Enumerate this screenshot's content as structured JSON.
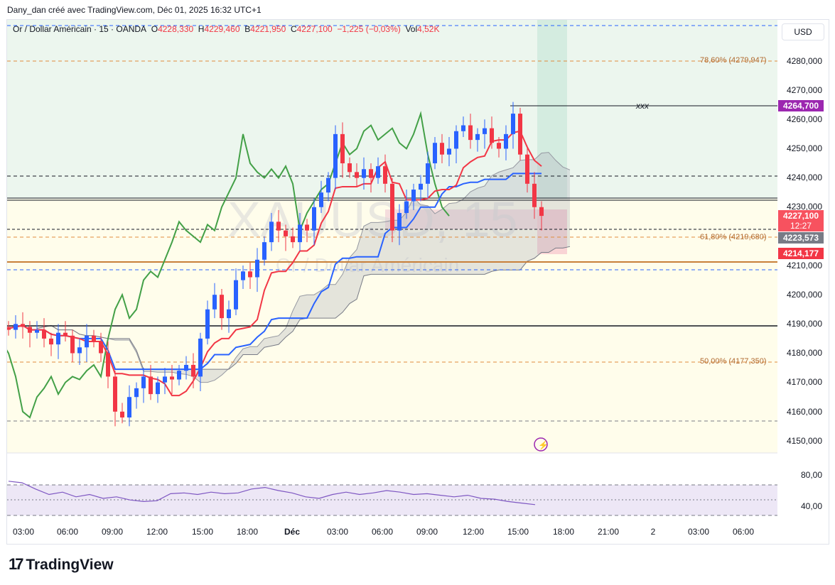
{
  "credit": "Dany_dan créé avec TradingView.com, Déc 01, 2025 16:32 UTC+1",
  "legend": {
    "symbol": "Or / Dollar Américain · 15 · OANDA",
    "o_label": "O",
    "o": "4228,330",
    "h_label": "H",
    "h": "4229,460",
    "b_label": "B",
    "b": "4221,950",
    "c_label": "C",
    "c": "4227,100",
    "change": "−1,225 (−0,03%)",
    "vol_label": "Vol",
    "vol": "4,52K"
  },
  "currency": "USD",
  "watermark": {
    "ticker": "XAUUSD, 15",
    "name": "Or / Dollar Américain"
  },
  "price_axis": [
    "4280,000",
    "4270,000",
    "4260,000",
    "4250,000",
    "4240,000",
    "4230,000",
    "4210,000",
    "4200,000",
    "4190,000",
    "4180,000",
    "4170,000",
    "4160,000",
    "4150,000"
  ],
  "price_tags": {
    "xxx": "4264,700",
    "last": "4227,100",
    "countdown": "12:27",
    "mid": "4223,573",
    "low": "4214,177"
  },
  "fib": {
    "f786": "78,60% (4279,947)",
    "f618": "61,80% (4219,680)",
    "f50": "50,00% (4177,350)"
  },
  "annotation": "xxx",
  "rsi_axis": [
    "80,00",
    "40,00"
  ],
  "time_axis": [
    "03:00",
    "06:00",
    "09:00",
    "12:00",
    "15:00",
    "18:00",
    "Déc",
    "03:00",
    "06:00",
    "09:00",
    "12:00",
    "15:00",
    "18:00",
    "21:00",
    "2",
    "03:00",
    "06:00"
  ],
  "logo": "TradingView",
  "colors": {
    "up": "#2962ff",
    "down": "#f23645",
    "tenkan": "#f23645",
    "kijun": "#2962ff",
    "chikou": "#43a047",
    "rsi": "#7e57c2"
  },
  "chart_data": {
    "type": "candlestick",
    "symbol": "XAUUSD",
    "interval": "15",
    "ylim": [
      4145,
      4295
    ],
    "closes": [
      4188,
      4190,
      4189,
      4187,
      4188,
      4185,
      4183,
      4187,
      4186,
      4180,
      4182,
      4186,
      4184,
      4180,
      4172,
      4160,
      4158,
      4165,
      4168,
      4172,
      4166,
      4170,
      4172,
      4171,
      4174,
      4176,
      4172,
      4185,
      4195,
      4200,
      4192,
      4195,
      4205,
      4208,
      4206,
      4212,
      4218,
      4225,
      4222,
      4220,
      4218,
      4224,
      4222,
      4230,
      4235,
      4240,
      4255,
      4245,
      4242,
      4240,
      4243,
      4240,
      4244,
      4238,
      4222,
      4228,
      4232,
      4236,
      4238,
      4245,
      4252,
      4248,
      4250,
      4256,
      4258,
      4253,
      4255,
      4257,
      4252,
      4250,
      4255,
      4262,
      4248,
      4238,
      4230,
      4227
    ],
    "rsi": [
      72,
      70,
      62,
      55,
      58,
      52,
      55,
      50,
      52,
      48,
      46,
      47,
      56,
      57,
      55,
      58,
      56,
      57,
      62,
      64,
      60,
      57,
      52,
      50,
      55,
      58,
      55,
      57,
      60,
      58,
      55,
      56,
      54,
      52,
      54,
      50,
      49,
      46,
      44,
      42
    ]
  }
}
